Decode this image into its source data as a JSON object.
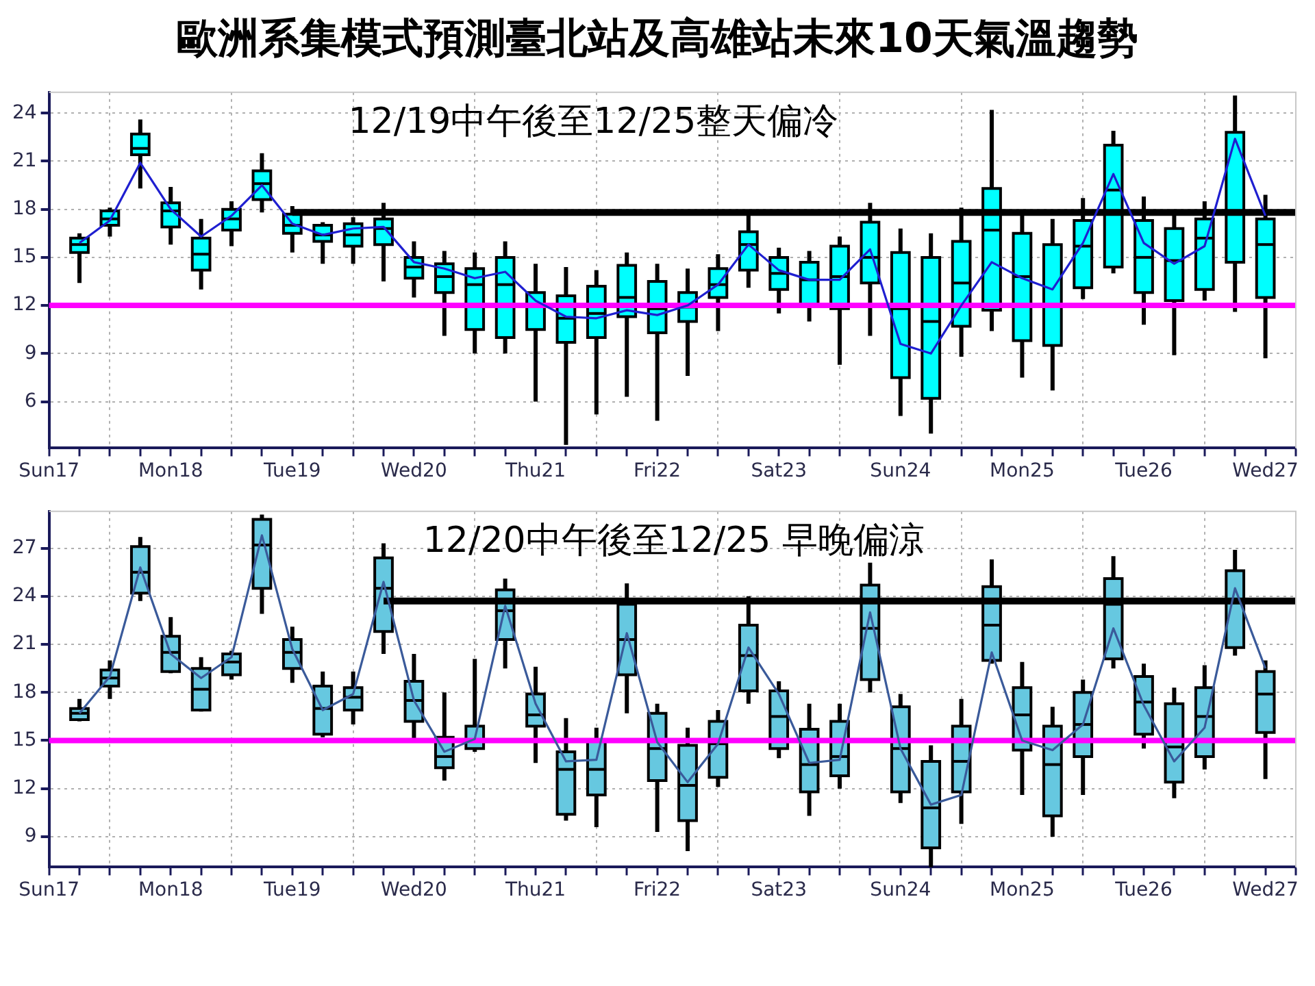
{
  "chart_data": [
    {
      "type": "box",
      "title": "歐洲系集模式預測臺北站及高雄站未來10天氣溫趨勢",
      "annotations": [
        "12/19中午後至12/25整天偏冷"
      ],
      "categories": [
        "Sun17",
        null,
        null,
        null,
        "Mon18",
        null,
        null,
        null,
        "Tue19",
        null,
        null,
        null,
        "Wed20",
        null,
        null,
        null,
        "Thu21",
        null,
        null,
        null,
        "Fri22",
        null,
        null,
        null,
        "Sat23",
        null,
        null,
        null,
        "Sun24",
        null,
        null,
        null,
        "Mon25",
        null,
        null,
        null,
        "Tue26",
        null,
        null,
        null,
        "Wed27",
        null
      ],
      "series": [
        {
          "color": "#00ffff",
          "boxes": [
            null,
            {
              "low": 13.4,
              "q1": 15.3,
              "median": 15.8,
              "q3": 16.2,
              "high": 16.5
            },
            {
              "low": 16.3,
              "q1": 17.0,
              "median": 17.4,
              "q3": 17.9,
              "high": 18.1
            },
            {
              "low": 19.3,
              "q1": 21.4,
              "median": 21.8,
              "q3": 22.7,
              "high": 23.6
            },
            {
              "low": 15.8,
              "q1": 16.9,
              "median": 17.9,
              "q3": 18.4,
              "high": 19.4
            },
            {
              "low": 13.0,
              "q1": 14.2,
              "median": 15.2,
              "q3": 16.2,
              "high": 17.4
            },
            {
              "low": 15.7,
              "q1": 16.7,
              "median": 17.4,
              "q3": 18.0,
              "high": 18.5
            },
            {
              "low": 17.8,
              "q1": 18.6,
              "median": 19.6,
              "q3": 20.4,
              "high": 21.5
            },
            {
              "low": 15.3,
              "q1": 16.5,
              "median": 17.0,
              "q3": 17.7,
              "high": 18.2
            },
            {
              "low": 14.6,
              "q1": 16.0,
              "median": 16.4,
              "q3": 17.0,
              "high": 17.2
            },
            {
              "low": 14.6,
              "q1": 15.7,
              "median": 16.4,
              "q3": 17.1,
              "high": 17.5
            },
            {
              "low": 13.5,
              "q1": 15.8,
              "median": 16.8,
              "q3": 17.4,
              "high": 18.4
            },
            {
              "low": 12.5,
              "q1": 13.7,
              "median": 14.4,
              "q3": 15.0,
              "high": 16.0
            },
            {
              "low": 10.1,
              "q1": 12.8,
              "median": 13.8,
              "q3": 14.6,
              "high": 15.4
            },
            {
              "low": 9.0,
              "q1": 10.5,
              "median": 13.3,
              "q3": 14.3,
              "high": 15.3
            },
            {
              "low": 9.0,
              "q1": 10.0,
              "median": 13.3,
              "q3": 15.0,
              "high": 16.0
            },
            {
              "low": 6.0,
              "q1": 10.5,
              "median": 12.0,
              "q3": 12.8,
              "high": 14.6
            },
            {
              "low": 3.3,
              "q1": 9.7,
              "median": 11.2,
              "q3": 12.6,
              "high": 14.4
            },
            {
              "low": 5.2,
              "q1": 10.0,
              "median": 11.5,
              "q3": 13.2,
              "high": 14.2
            },
            {
              "low": 6.3,
              "q1": 11.3,
              "median": 12.5,
              "q3": 14.5,
              "high": 15.3
            },
            {
              "low": 4.8,
              "q1": 10.3,
              "median": 11.8,
              "q3": 13.5,
              "high": 14.6
            },
            {
              "low": 7.6,
              "q1": 11.0,
              "median": 11.9,
              "q3": 12.8,
              "high": 14.3
            },
            {
              "low": 10.4,
              "q1": 12.5,
              "median": 13.3,
              "q3": 14.3,
              "high": 15.2
            },
            {
              "low": 13.1,
              "q1": 14.2,
              "median": 15.8,
              "q3": 16.6,
              "high": 17.6
            },
            {
              "low": 11.5,
              "q1": 13.0,
              "median": 14.0,
              "q3": 15.0,
              "high": 15.6
            },
            {
              "low": 11.0,
              "q1": 12.0,
              "median": 13.6,
              "q3": 14.7,
              "high": 15.4
            },
            {
              "low": 8.3,
              "q1": 11.8,
              "median": 13.8,
              "q3": 15.7,
              "high": 16.3
            },
            {
              "low": 10.1,
              "q1": 13.4,
              "median": 15.0,
              "q3": 17.2,
              "high": 18.4
            },
            {
              "low": 5.1,
              "q1": 7.5,
              "median": 11.8,
              "q3": 15.3,
              "high": 16.8
            },
            {
              "low": 4.0,
              "q1": 6.2,
              "median": 11.0,
              "q3": 15.0,
              "high": 16.5
            },
            {
              "low": 8.8,
              "q1": 10.7,
              "median": 13.4,
              "q3": 16.0,
              "high": 18.1
            },
            {
              "low": 10.4,
              "q1": 11.7,
              "median": 16.7,
              "q3": 19.3,
              "high": 24.2
            },
            {
              "low": 7.5,
              "q1": 9.8,
              "median": 13.8,
              "q3": 16.5,
              "high": 17.8
            },
            {
              "low": 6.7,
              "q1": 9.5,
              "median": 12.0,
              "q3": 15.8,
              "high": 17.4
            },
            {
              "low": 12.4,
              "q1": 13.1,
              "median": 15.7,
              "q3": 17.3,
              "high": 18.7
            },
            {
              "low": 14.0,
              "q1": 14.4,
              "median": 19.2,
              "q3": 22.0,
              "high": 22.9
            },
            {
              "low": 10.8,
              "q1": 12.8,
              "median": 15.0,
              "q3": 17.3,
              "high": 18.8
            },
            {
              "low": 8.9,
              "q1": 12.3,
              "median": 14.8,
              "q3": 16.8,
              "high": 17.6
            },
            {
              "low": 12.3,
              "q1": 13.0,
              "median": 16.2,
              "q3": 17.4,
              "high": 18.5
            },
            {
              "low": 11.6,
              "q1": 14.7,
              "median": 17.8,
              "q3": 22.8,
              "high": 25.1
            },
            {
              "low": 8.7,
              "q1": 12.5,
              "median": 15.8,
              "q3": 17.4,
              "high": 18.9
            },
            null
          ]
        },
        {
          "type": "line",
          "color": "#1f1fd0",
          "values": [
            null,
            15.9,
            17.3,
            20.9,
            18.0,
            16.3,
            17.6,
            19.5,
            17.1,
            16.4,
            16.8,
            16.9,
            14.7,
            14.3,
            13.7,
            14.1,
            12.3,
            11.3,
            11.2,
            11.7,
            11.4,
            12.0,
            13.3,
            15.8,
            14.2,
            13.6,
            13.6,
            15.5,
            9.6,
            9.0,
            12.0,
            14.7,
            13.7,
            13.0,
            15.9,
            20.2,
            15.9,
            14.6,
            15.7,
            22.4,
            17.6,
            null
          ]
        },
        {
          "type": "line",
          "color": "#000000",
          "values": [
            null,
            null,
            null,
            null,
            null,
            null,
            null,
            null,
            17.8,
            17.8,
            17.8,
            17.8,
            17.8,
            17.8,
            17.8,
            17.8,
            17.8,
            17.8,
            17.8,
            17.8,
            17.8,
            17.8,
            17.8,
            17.8,
            17.8,
            17.8,
            17.8,
            17.8,
            17.8,
            17.8,
            17.8,
            17.8,
            17.8,
            17.8,
            17.8,
            17.8,
            17.8,
            17.8,
            17.8,
            17.8,
            17.8,
            17.8
          ]
        }
      ],
      "ref_lines": [
        {
          "axis": "y",
          "value": 12,
          "color": "#ff00ff"
        }
      ],
      "ylim": [
        3.1,
        25.3
      ],
      "yticks": [
        6,
        9,
        12,
        15,
        18,
        21,
        24
      ],
      "grid": true,
      "marker": "none"
    },
    {
      "type": "box",
      "annotations": [
        "12/20中午後至12/25 早晚偏涼"
      ],
      "categories": [
        "Sun17",
        null,
        null,
        null,
        "Mon18",
        null,
        null,
        null,
        "Tue19",
        null,
        null,
        null,
        "Wed20",
        null,
        null,
        null,
        "Thu21",
        null,
        null,
        null,
        "Fri22",
        null,
        null,
        null,
        "Sat23",
        null,
        null,
        null,
        "Sun24",
        null,
        null,
        null,
        "Mon25",
        null,
        null,
        null,
        "Tue26",
        null,
        null,
        null,
        "Wed27",
        null
      ],
      "series": [
        {
          "color": "#66c8e0",
          "boxes": [
            null,
            {
              "low": 16.2,
              "q1": 16.3,
              "median": 16.7,
              "q3": 17.0,
              "high": 17.6
            },
            {
              "low": 17.6,
              "q1": 18.4,
              "median": 18.9,
              "q3": 19.4,
              "high": 20.0
            },
            {
              "low": 23.7,
              "q1": 24.2,
              "median": 25.5,
              "q3": 27.1,
              "high": 27.7
            },
            {
              "low": 19.2,
              "q1": 19.3,
              "median": 20.5,
              "q3": 21.5,
              "high": 22.7
            },
            {
              "low": 16.8,
              "q1": 16.9,
              "median": 18.2,
              "q3": 19.5,
              "high": 20.2
            },
            {
              "low": 18.8,
              "q1": 19.1,
              "median": 19.9,
              "q3": 20.4,
              "high": 20.6
            },
            {
              "low": 22.9,
              "q1": 24.5,
              "median": 27.2,
              "q3": 28.8,
              "high": 29.1
            },
            {
              "low": 18.6,
              "q1": 19.5,
              "median": 20.5,
              "q3": 21.3,
              "high": 22.1
            },
            {
              "low": 15.2,
              "q1": 15.4,
              "median": 17.0,
              "q3": 18.4,
              "high": 19.3
            },
            {
              "low": 16.0,
              "q1": 16.9,
              "median": 17.7,
              "q3": 18.3,
              "high": 19.3
            },
            {
              "low": 20.4,
              "q1": 21.8,
              "median": 24.5,
              "q3": 26.4,
              "high": 27.3
            },
            {
              "low": 15.0,
              "q1": 16.2,
              "median": 17.5,
              "q3": 18.7,
              "high": 20.4
            },
            {
              "low": 12.5,
              "q1": 13.3,
              "median": 14.0,
              "q3": 15.2,
              "high": 18.0
            },
            {
              "low": 14.3,
              "q1": 14.5,
              "median": 15.0,
              "q3": 15.9,
              "high": 20.1
            },
            {
              "low": 19.5,
              "q1": 21.3,
              "median": 23.1,
              "q3": 24.4,
              "high": 25.1
            },
            {
              "low": 13.6,
              "q1": 15.9,
              "median": 16.6,
              "q3": 17.9,
              "high": 19.6
            },
            {
              "low": 10.0,
              "q1": 10.4,
              "median": 13.2,
              "q3": 14.3,
              "high": 16.4
            },
            {
              "low": 9.6,
              "q1": 11.6,
              "median": 13.2,
              "q3": 15.0,
              "high": 15.8
            },
            {
              "low": 16.7,
              "q1": 19.1,
              "median": 21.3,
              "q3": 23.5,
              "high": 24.8
            },
            {
              "low": 9.3,
              "q1": 12.5,
              "median": 14.5,
              "q3": 16.7,
              "high": 17.3
            },
            {
              "low": 8.1,
              "q1": 10.0,
              "median": 12.2,
              "q3": 14.7,
              "high": 15.8
            },
            {
              "low": 12.1,
              "q1": 12.7,
              "median": 14.8,
              "q3": 16.2,
              "high": 16.9
            },
            {
              "low": 17.3,
              "q1": 18.1,
              "median": 20.3,
              "q3": 22.2,
              "high": 24.0
            },
            {
              "low": 13.9,
              "q1": 14.5,
              "median": 16.5,
              "q3": 18.1,
              "high": 18.7
            },
            {
              "low": 10.3,
              "q1": 11.8,
              "median": 13.5,
              "q3": 15.7,
              "high": 17.3
            },
            {
              "low": 12.0,
              "q1": 12.8,
              "median": 14.0,
              "q3": 16.2,
              "high": 17.3
            },
            {
              "low": 18.0,
              "q1": 18.8,
              "median": 22.0,
              "q3": 24.7,
              "high": 26.1
            },
            {
              "low": 11.1,
              "q1": 11.8,
              "median": 14.5,
              "q3": 17.1,
              "high": 17.9
            },
            {
              "low": 7.1,
              "q1": 8.3,
              "median": 10.8,
              "q3": 13.7,
              "high": 14.7
            },
            {
              "low": 9.8,
              "q1": 11.8,
              "median": 13.7,
              "q3": 15.9,
              "high": 17.6
            },
            {
              "low": 19.8,
              "q1": 20.0,
              "median": 22.2,
              "q3": 24.6,
              "high": 26.3
            },
            {
              "low": 11.6,
              "q1": 14.4,
              "median": 16.6,
              "q3": 18.3,
              "high": 19.9
            },
            {
              "low": 9.0,
              "q1": 10.3,
              "median": 13.5,
              "q3": 15.9,
              "high": 17.1
            },
            {
              "low": 11.6,
              "q1": 14.0,
              "median": 16.0,
              "q3": 18.0,
              "high": 18.8
            },
            {
              "low": 19.5,
              "q1": 20.1,
              "median": 23.5,
              "q3": 25.1,
              "high": 26.5
            },
            {
              "low": 14.5,
              "q1": 15.4,
              "median": 17.4,
              "q3": 19.0,
              "high": 19.8
            },
            {
              "low": 11.4,
              "q1": 12.4,
              "median": 14.6,
              "q3": 17.3,
              "high": 18.3
            },
            {
              "low": 13.2,
              "q1": 14.0,
              "median": 16.5,
              "q3": 18.3,
              "high": 19.7
            },
            {
              "low": 20.3,
              "q1": 20.8,
              "median": 23.8,
              "q3": 25.6,
              "high": 26.9
            },
            {
              "low": 12.6,
              "q1": 15.5,
              "median": 17.9,
              "q3": 19.3,
              "high": 20.0
            },
            null
          ]
        },
        {
          "type": "line",
          "color": "#3a5a9a",
          "values": [
            null,
            16.7,
            19.0,
            25.8,
            20.4,
            18.9,
            20.2,
            27.8,
            20.7,
            16.9,
            17.9,
            24.9,
            17.5,
            14.3,
            15.1,
            23.4,
            17.3,
            13.7,
            13.8,
            21.7,
            14.9,
            12.4,
            14.8,
            20.8,
            17.9,
            13.6,
            13.8,
            23.0,
            14.5,
            11.0,
            11.6,
            20.5,
            15.0,
            14.4,
            16.0,
            22.0,
            17.2,
            13.7,
            15.8,
            24.5,
            19.5,
            null
          ]
        },
        {
          "type": "line",
          "color": "#000000",
          "values": [
            null,
            null,
            null,
            null,
            null,
            null,
            null,
            null,
            null,
            null,
            null,
            23.7,
            23.7,
            23.7,
            23.7,
            23.7,
            23.7,
            23.7,
            23.7,
            23.7,
            23.7,
            23.7,
            23.7,
            23.7,
            23.7,
            23.7,
            23.7,
            23.7,
            23.7,
            23.7,
            23.7,
            23.7,
            23.7,
            23.7,
            23.7,
            23.7,
            23.7,
            23.7,
            23.7,
            23.7,
            23.7,
            23.7
          ]
        }
      ],
      "ref_lines": [
        {
          "axis": "y",
          "value": 15,
          "color": "#ff00ff"
        }
      ],
      "ylim": [
        7.1,
        29.3
      ],
      "yticks": [
        9,
        12,
        15,
        18,
        21,
        24,
        27
      ],
      "grid": true,
      "marker": "none"
    }
  ]
}
